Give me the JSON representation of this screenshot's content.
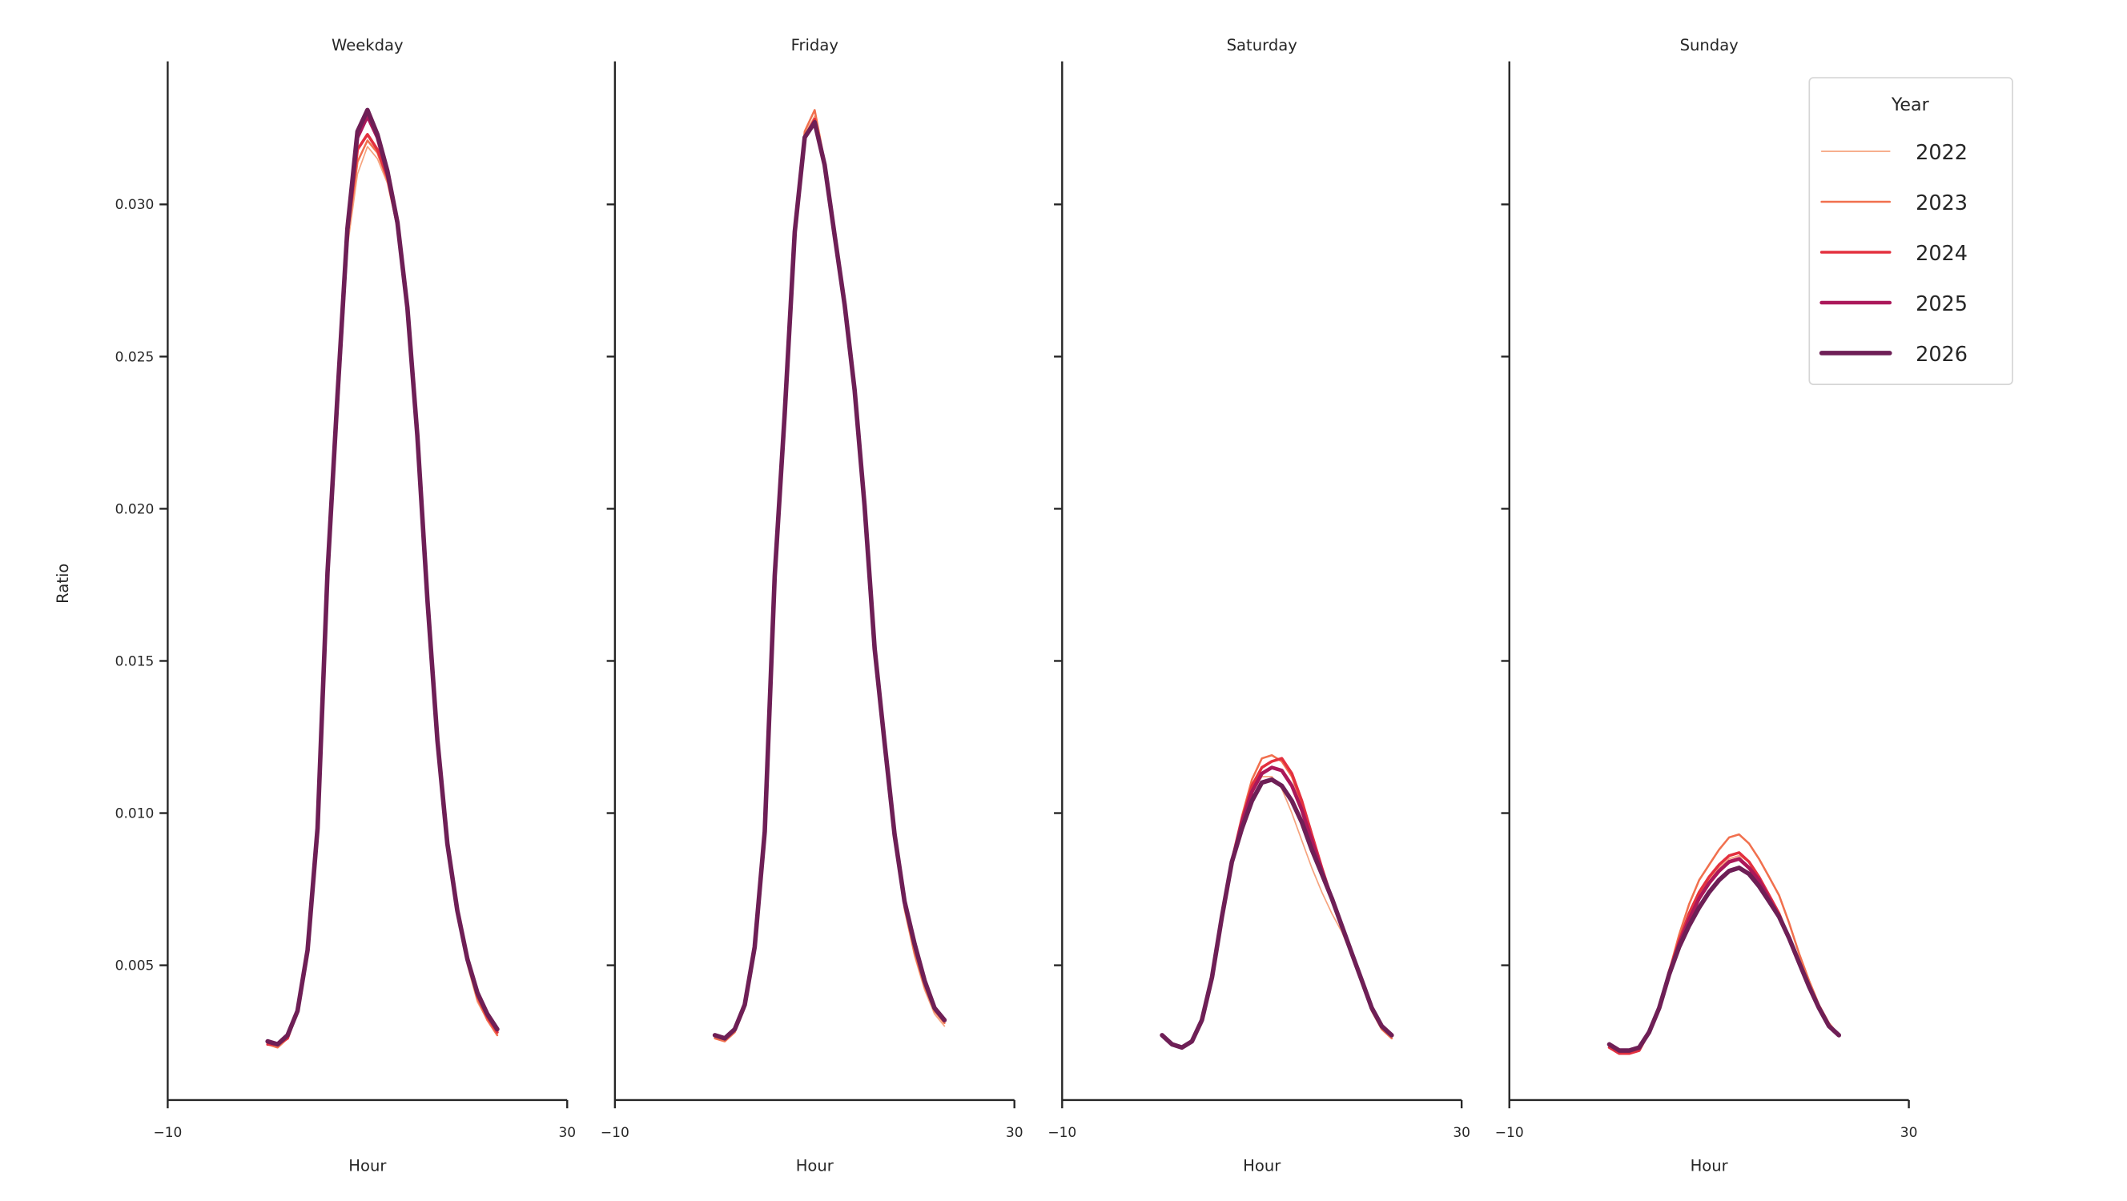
{
  "chart_data": {
    "type": "line",
    "xlabel": "Hour",
    "ylabel": "Ratio",
    "xlim": [
      -10,
      30
    ],
    "ylim": [
      0.00057,
      0.0347
    ],
    "xticks": [
      -10,
      30
    ],
    "xtick_labels": [
      "−10",
      "30"
    ],
    "yticks": [
      0.005,
      0.01,
      0.015,
      0.02,
      0.025,
      0.03
    ],
    "ytick_labels": [
      "0.005",
      "0.010",
      "0.015",
      "0.020",
      "0.025",
      "0.030"
    ],
    "grid": false,
    "legend": {
      "title": "Year",
      "placement": "top-right"
    },
    "x": [
      0,
      1,
      2,
      3,
      4,
      5,
      6,
      7,
      8,
      9,
      10,
      11,
      12,
      13,
      14,
      15,
      16,
      17,
      18,
      19,
      20,
      21,
      22,
      23
    ],
    "series_styles": [
      {
        "name": "2022",
        "color": "#f6a47f",
        "width": 1.0
      },
      {
        "name": "2023",
        "color": "#f1704e",
        "width": 1.5
      },
      {
        "name": "2024",
        "color": "#e3303f",
        "width": 2.1
      },
      {
        "name": "2025",
        "color": "#ab185a",
        "width": 2.7
      },
      {
        "name": "2026",
        "color": "#6e1f56",
        "width": 3.3
      }
    ],
    "panels": [
      {
        "title": "Weekday",
        "series": [
          {
            "name": "2022",
            "values": [
              0.0024,
              0.0023,
              0.0026,
              0.0034,
              0.0054,
              0.0093,
              0.0175,
              0.0232,
              0.0286,
              0.031,
              0.0319,
              0.0315,
              0.0307,
              0.0292,
              0.0265,
              0.0223,
              0.0169,
              0.0123,
              0.0089,
              0.0066,
              0.005,
              0.0038,
              0.0032,
              0.0027
            ]
          },
          {
            "name": "2023",
            "values": [
              0.0024,
              0.0023,
              0.0026,
              0.0035,
              0.0055,
              0.0094,
              0.0177,
              0.0234,
              0.0289,
              0.0314,
              0.0321,
              0.0317,
              0.0308,
              0.0293,
              0.0265,
              0.0223,
              0.0169,
              0.0123,
              0.0089,
              0.0067,
              0.0051,
              0.0039,
              0.0032,
              0.0027
            ]
          },
          {
            "name": "2024",
            "values": [
              0.0024,
              0.0024,
              0.0026,
              0.0035,
              0.0055,
              0.0094,
              0.0178,
              0.0235,
              0.029,
              0.0318,
              0.0323,
              0.0318,
              0.0309,
              0.0293,
              0.0266,
              0.0224,
              0.017,
              0.0124,
              0.009,
              0.0068,
              0.0052,
              0.004,
              0.0033,
              0.0028
            ]
          },
          {
            "name": "2025",
            "values": [
              0.0025,
              0.0024,
              0.0027,
              0.0035,
              0.0055,
              0.0095,
              0.0179,
              0.0236,
              0.0291,
              0.0322,
              0.0329,
              0.0322,
              0.031,
              0.0294,
              0.0266,
              0.0224,
              0.017,
              0.0124,
              0.009,
              0.0068,
              0.0052,
              0.0041,
              0.0034,
              0.0029
            ]
          },
          {
            "name": "2026",
            "values": [
              0.0025,
              0.0024,
              0.0027,
              0.0035,
              0.0055,
              0.0095,
              0.0179,
              0.0237,
              0.0292,
              0.0324,
              0.0331,
              0.0323,
              0.0311,
              0.0294,
              0.0266,
              0.0224,
              0.017,
              0.0124,
              0.009,
              0.0068,
              0.0052,
              0.0041,
              0.0034,
              0.0029
            ]
          }
        ]
      },
      {
        "title": "Friday",
        "series": [
          {
            "name": "2022",
            "values": [
              0.0026,
              0.0025,
              0.0028,
              0.0036,
              0.0055,
              0.0093,
              0.0176,
              0.023,
              0.029,
              0.0323,
              0.0329,
              0.0314,
              0.0291,
              0.0267,
              0.0239,
              0.0201,
              0.0153,
              0.0121,
              0.009,
              0.0068,
              0.0053,
              0.0042,
              0.0034,
              0.003
            ]
          },
          {
            "name": "2023",
            "values": [
              0.0026,
              0.0025,
              0.0028,
              0.0036,
              0.0055,
              0.0093,
              0.0177,
              0.0231,
              0.0291,
              0.0324,
              0.0331,
              0.0314,
              0.0291,
              0.0267,
              0.0239,
              0.0201,
              0.0153,
              0.0122,
              0.0091,
              0.0069,
              0.0054,
              0.0043,
              0.0035,
              0.0031
            ]
          },
          {
            "name": "2024",
            "values": [
              0.0027,
              0.0026,
              0.0029,
              0.0037,
              0.0056,
              0.0094,
              0.0178,
              0.0231,
              0.0291,
              0.0322,
              0.0328,
              0.0313,
              0.029,
              0.0267,
              0.0239,
              0.0201,
              0.0154,
              0.0123,
              0.0093,
              0.0071,
              0.0057,
              0.0045,
              0.0036,
              0.0032
            ]
          },
          {
            "name": "2025",
            "values": [
              0.0027,
              0.0026,
              0.0029,
              0.0037,
              0.0056,
              0.0094,
              0.0178,
              0.0231,
              0.0291,
              0.0322,
              0.0327,
              0.0313,
              0.029,
              0.0267,
              0.0239,
              0.0201,
              0.0154,
              0.0123,
              0.0093,
              0.0071,
              0.0057,
              0.0045,
              0.0036,
              0.0032
            ]
          },
          {
            "name": "2026",
            "values": [
              0.0027,
              0.0026,
              0.0029,
              0.0037,
              0.0056,
              0.0094,
              0.0178,
              0.0231,
              0.0291,
              0.0322,
              0.0327,
              0.0313,
              0.029,
              0.0267,
              0.0239,
              0.0201,
              0.0154,
              0.0123,
              0.0093,
              0.0071,
              0.0057,
              0.0045,
              0.0036,
              0.0032
            ]
          }
        ]
      },
      {
        "title": "Saturday",
        "series": [
          {
            "name": "2022",
            "values": [
              0.0027,
              0.0024,
              0.0023,
              0.0025,
              0.0032,
              0.0046,
              0.0066,
              0.0084,
              0.0097,
              0.0107,
              0.0112,
              0.0112,
              0.0108,
              0.01,
              0.0091,
              0.0082,
              0.0074,
              0.0067,
              0.0061,
              0.0053,
              0.0044,
              0.0035,
              0.0029,
              0.0026
            ]
          },
          {
            "name": "2023",
            "values": [
              0.0027,
              0.0024,
              0.0023,
              0.0025,
              0.0032,
              0.0046,
              0.0066,
              0.0085,
              0.0099,
              0.0111,
              0.0118,
              0.0119,
              0.0117,
              0.0112,
              0.0103,
              0.0093,
              0.0082,
              0.0072,
              0.0063,
              0.0053,
              0.0044,
              0.0035,
              0.0029,
              0.0026
            ]
          },
          {
            "name": "2024",
            "values": [
              0.0027,
              0.0024,
              0.0023,
              0.0025,
              0.0032,
              0.0046,
              0.0066,
              0.0084,
              0.0098,
              0.0109,
              0.0115,
              0.0117,
              0.0118,
              0.0113,
              0.0104,
              0.0093,
              0.0082,
              0.0072,
              0.0063,
              0.0054,
              0.0045,
              0.0036,
              0.003,
              0.0027
            ]
          },
          {
            "name": "2025",
            "values": [
              0.0027,
              0.0024,
              0.0023,
              0.0025,
              0.0032,
              0.0046,
              0.0066,
              0.0084,
              0.0097,
              0.0107,
              0.0113,
              0.0115,
              0.0114,
              0.0109,
              0.0101,
              0.0091,
              0.0081,
              0.0072,
              0.0063,
              0.0054,
              0.0045,
              0.0036,
              0.003,
              0.0027
            ]
          },
          {
            "name": "2026",
            "values": [
              0.0027,
              0.0024,
              0.0023,
              0.0025,
              0.0032,
              0.0046,
              0.0066,
              0.0084,
              0.0095,
              0.0104,
              0.011,
              0.0111,
              0.0109,
              0.0104,
              0.0097,
              0.0088,
              0.008,
              0.0072,
              0.0063,
              0.0054,
              0.0045,
              0.0036,
              0.003,
              0.0027
            ]
          }
        ]
      },
      {
        "title": "Sunday",
        "series": [
          {
            "name": "2022",
            "values": [
              0.0023,
              0.0021,
              0.0021,
              0.0022,
              0.0028,
              0.0036,
              0.0047,
              0.0057,
              0.0066,
              0.0073,
              0.0078,
              0.0082,
              0.0085,
              0.0086,
              0.0084,
              0.0079,
              0.0073,
              0.0067,
              0.0059,
              0.0051,
              0.0043,
              0.0036,
              0.003,
              0.0027
            ]
          },
          {
            "name": "2023",
            "values": [
              0.0023,
              0.0021,
              0.0021,
              0.0022,
              0.0028,
              0.0036,
              0.0048,
              0.006,
              0.007,
              0.0078,
              0.0083,
              0.0088,
              0.0092,
              0.0093,
              0.009,
              0.0085,
              0.0079,
              0.0073,
              0.0064,
              0.0054,
              0.0045,
              0.0037,
              0.0031,
              0.0027
            ]
          },
          {
            "name": "2024",
            "values": [
              0.0023,
              0.0021,
              0.0021,
              0.0022,
              0.0028,
              0.0036,
              0.0048,
              0.0058,
              0.0067,
              0.0074,
              0.0079,
              0.0083,
              0.0086,
              0.0087,
              0.0084,
              0.0079,
              0.0073,
              0.0067,
              0.0059,
              0.0051,
              0.0043,
              0.0036,
              0.003,
              0.0027
            ]
          },
          {
            "name": "2025",
            "values": [
              0.0024,
              0.0022,
              0.0022,
              0.0023,
              0.0028,
              0.0036,
              0.0047,
              0.0057,
              0.0065,
              0.0072,
              0.0077,
              0.0081,
              0.0084,
              0.0085,
              0.0082,
              0.0078,
              0.0072,
              0.0066,
              0.0059,
              0.0051,
              0.0043,
              0.0036,
              0.003,
              0.0027
            ]
          },
          {
            "name": "2026",
            "values": [
              0.0024,
              0.0022,
              0.0022,
              0.0023,
              0.0028,
              0.0036,
              0.0047,
              0.0056,
              0.0063,
              0.0069,
              0.0074,
              0.0078,
              0.0081,
              0.0082,
              0.008,
              0.0076,
              0.0071,
              0.0066,
              0.0059,
              0.0051,
              0.0043,
              0.0036,
              0.003,
              0.0027
            ]
          }
        ]
      }
    ]
  }
}
